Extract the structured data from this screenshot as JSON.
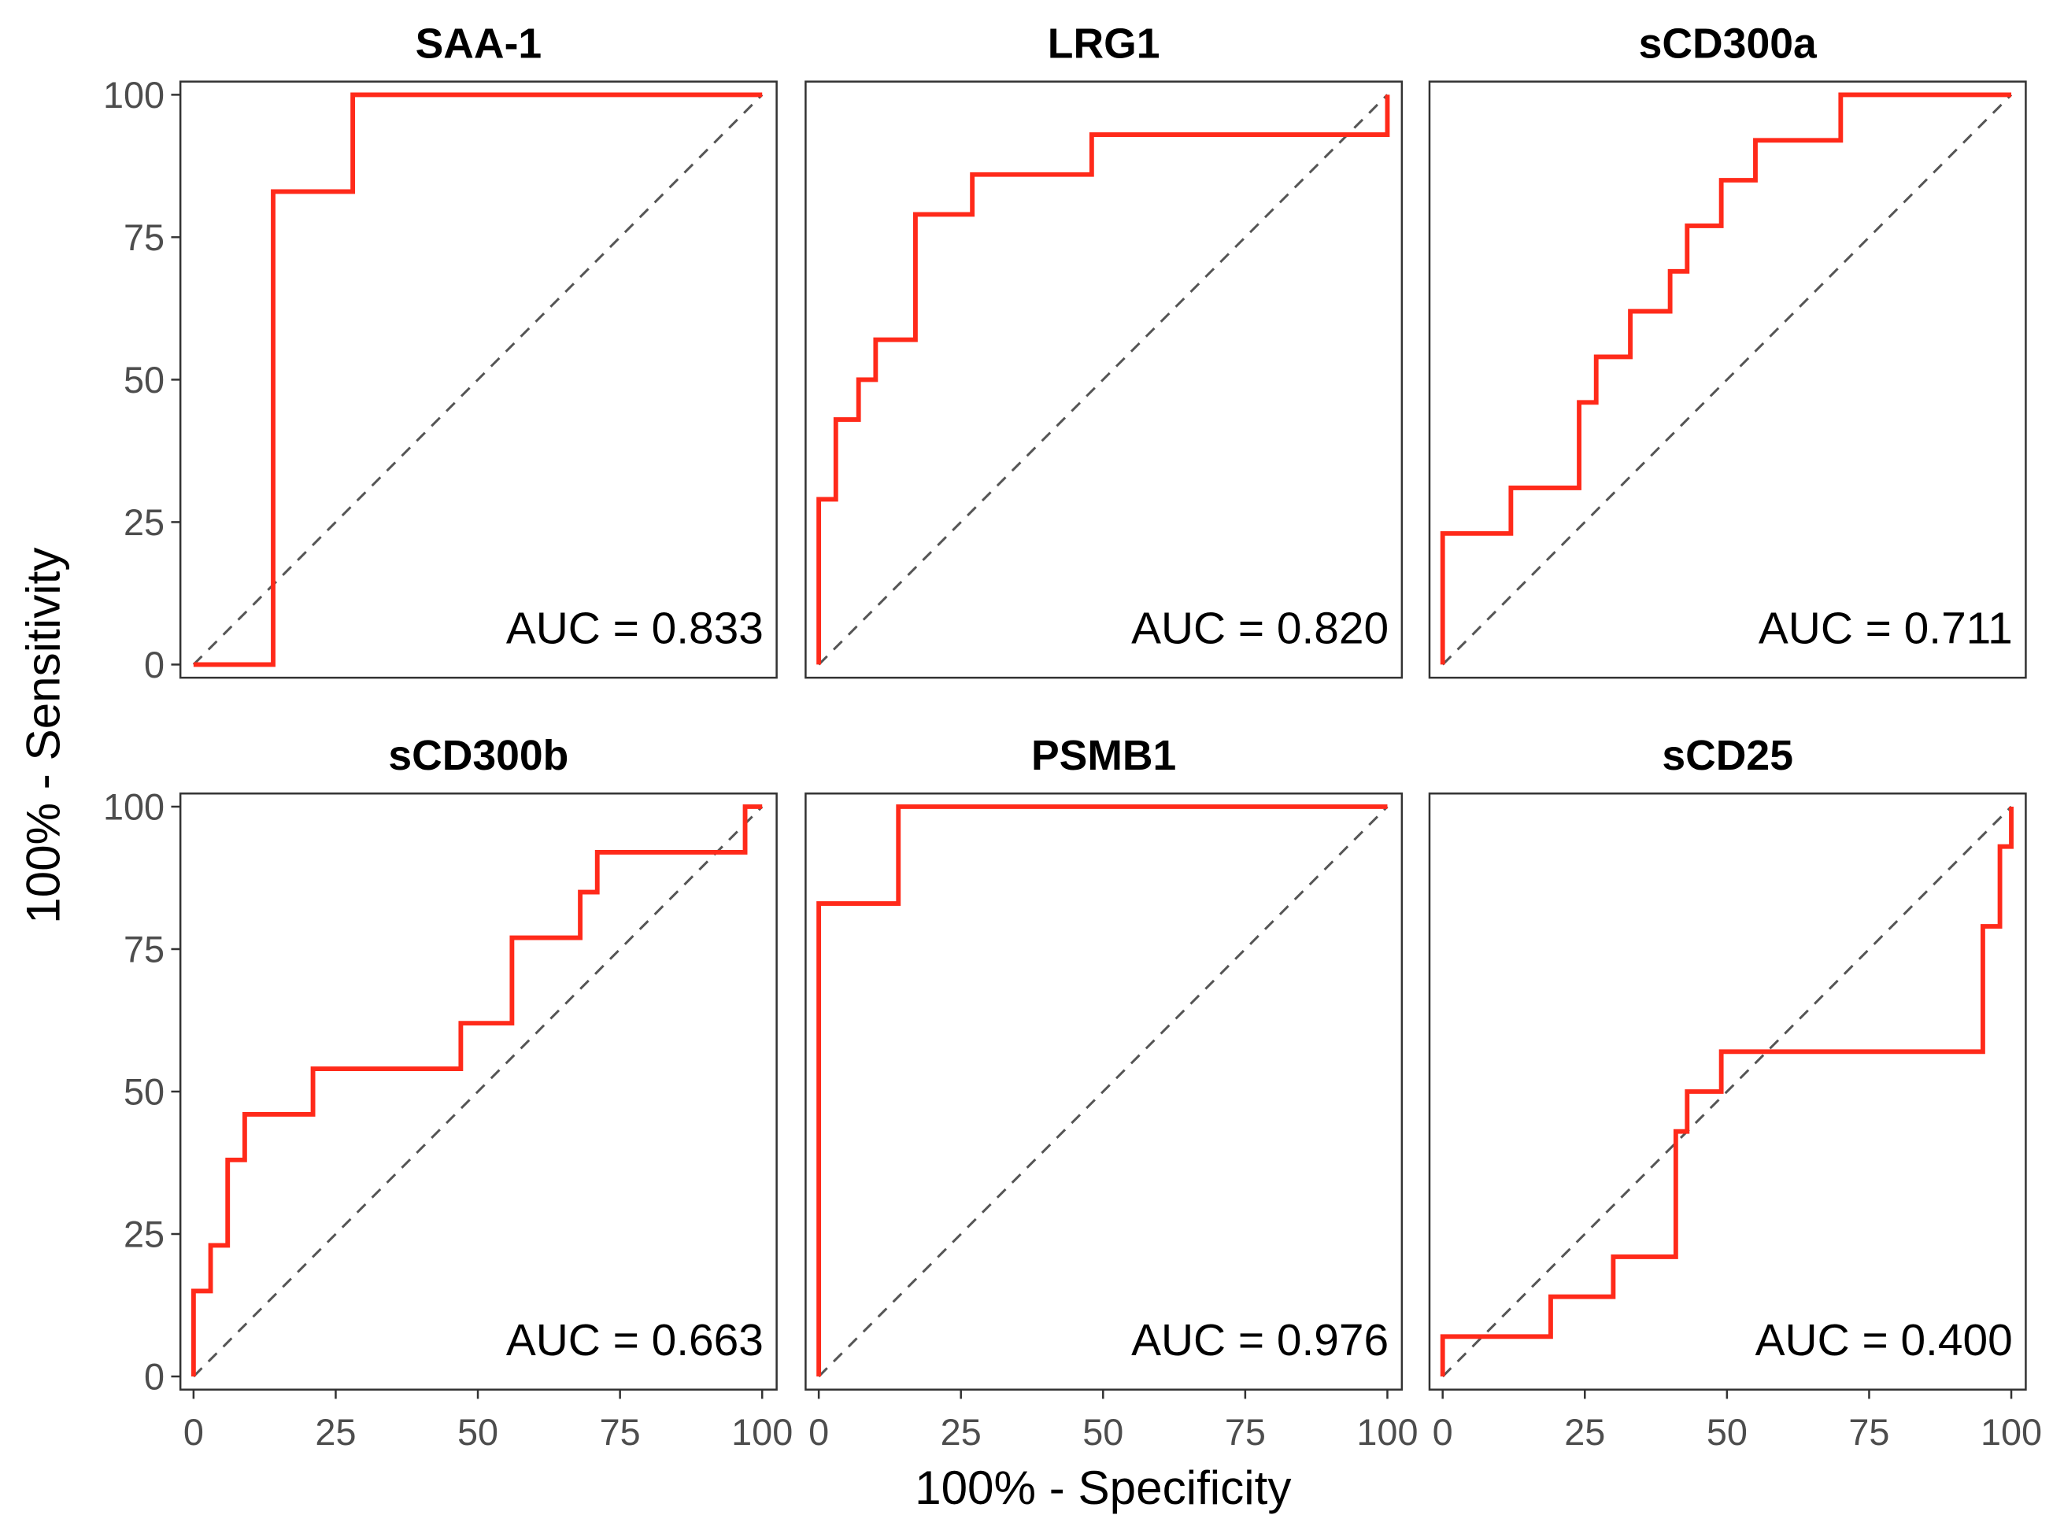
{
  "chart_data": {
    "type": "line",
    "xlabel": "100% - Specificity",
    "ylabel": "100% - Sensitivity",
    "xlim": [
      0,
      100
    ],
    "ylim": [
      0,
      100
    ],
    "ticks": [
      "0",
      "25",
      "50",
      "75",
      "100"
    ],
    "tick_values": [
      0,
      25,
      50,
      75,
      100
    ],
    "grid": false,
    "line_color": "#ff2a1a",
    "diagonal_color": "#555555",
    "panels": [
      {
        "title": "SAA-1",
        "auc": "AUC = 0.833",
        "points": [
          [
            0,
            0
          ],
          [
            14,
            0
          ],
          [
            14,
            83
          ],
          [
            28,
            83
          ],
          [
            28,
            100
          ],
          [
            100,
            100
          ]
        ]
      },
      {
        "title": "LRG1",
        "auc": "AUC = 0.820",
        "points": [
          [
            0,
            0
          ],
          [
            0,
            29
          ],
          [
            3,
            29
          ],
          [
            3,
            43
          ],
          [
            7,
            43
          ],
          [
            7,
            50
          ],
          [
            10,
            50
          ],
          [
            10,
            57
          ],
          [
            17,
            57
          ],
          [
            17,
            79
          ],
          [
            27,
            79
          ],
          [
            27,
            86
          ],
          [
            48,
            86
          ],
          [
            48,
            93
          ],
          [
            100,
            93
          ],
          [
            100,
            100
          ]
        ]
      },
      {
        "title": "sCD300a",
        "auc": "AUC = 0.711",
        "points": [
          [
            0,
            0
          ],
          [
            0,
            23
          ],
          [
            12,
            23
          ],
          [
            12,
            31
          ],
          [
            24,
            31
          ],
          [
            24,
            46
          ],
          [
            27,
            46
          ],
          [
            27,
            54
          ],
          [
            33,
            54
          ],
          [
            33,
            62
          ],
          [
            40,
            62
          ],
          [
            40,
            69
          ],
          [
            43,
            69
          ],
          [
            43,
            77
          ],
          [
            49,
            77
          ],
          [
            49,
            85
          ],
          [
            55,
            85
          ],
          [
            55,
            92
          ],
          [
            70,
            92
          ],
          [
            70,
            100
          ],
          [
            100,
            100
          ]
        ]
      },
      {
        "title": "sCD300b",
        "auc": "AUC = 0.663",
        "points": [
          [
            0,
            0
          ],
          [
            0,
            15
          ],
          [
            3,
            15
          ],
          [
            3,
            23
          ],
          [
            6,
            23
          ],
          [
            6,
            38
          ],
          [
            9,
            38
          ],
          [
            9,
            46
          ],
          [
            21,
            46
          ],
          [
            21,
            54
          ],
          [
            47,
            54
          ],
          [
            47,
            62
          ],
          [
            56,
            62
          ],
          [
            56,
            77
          ],
          [
            68,
            77
          ],
          [
            68,
            85
          ],
          [
            71,
            85
          ],
          [
            71,
            92
          ],
          [
            97,
            92
          ],
          [
            97,
            100
          ],
          [
            100,
            100
          ]
        ]
      },
      {
        "title": "PSMB1",
        "auc": "AUC = 0.976",
        "points": [
          [
            0,
            0
          ],
          [
            0,
            83
          ],
          [
            14,
            83
          ],
          [
            14,
            100
          ],
          [
            100,
            100
          ]
        ]
      },
      {
        "title": "sCD25",
        "auc": "AUC = 0.400",
        "points": [
          [
            0,
            0
          ],
          [
            0,
            7
          ],
          [
            19,
            7
          ],
          [
            19,
            14
          ],
          [
            30,
            14
          ],
          [
            30,
            21
          ],
          [
            41,
            21
          ],
          [
            41,
            43
          ],
          [
            43,
            43
          ],
          [
            43,
            50
          ],
          [
            49,
            50
          ],
          [
            49,
            57
          ],
          [
            95,
            57
          ],
          [
            95,
            79
          ],
          [
            98,
            79
          ],
          [
            98,
            93
          ],
          [
            100,
            93
          ],
          [
            100,
            100
          ]
        ]
      }
    ]
  }
}
